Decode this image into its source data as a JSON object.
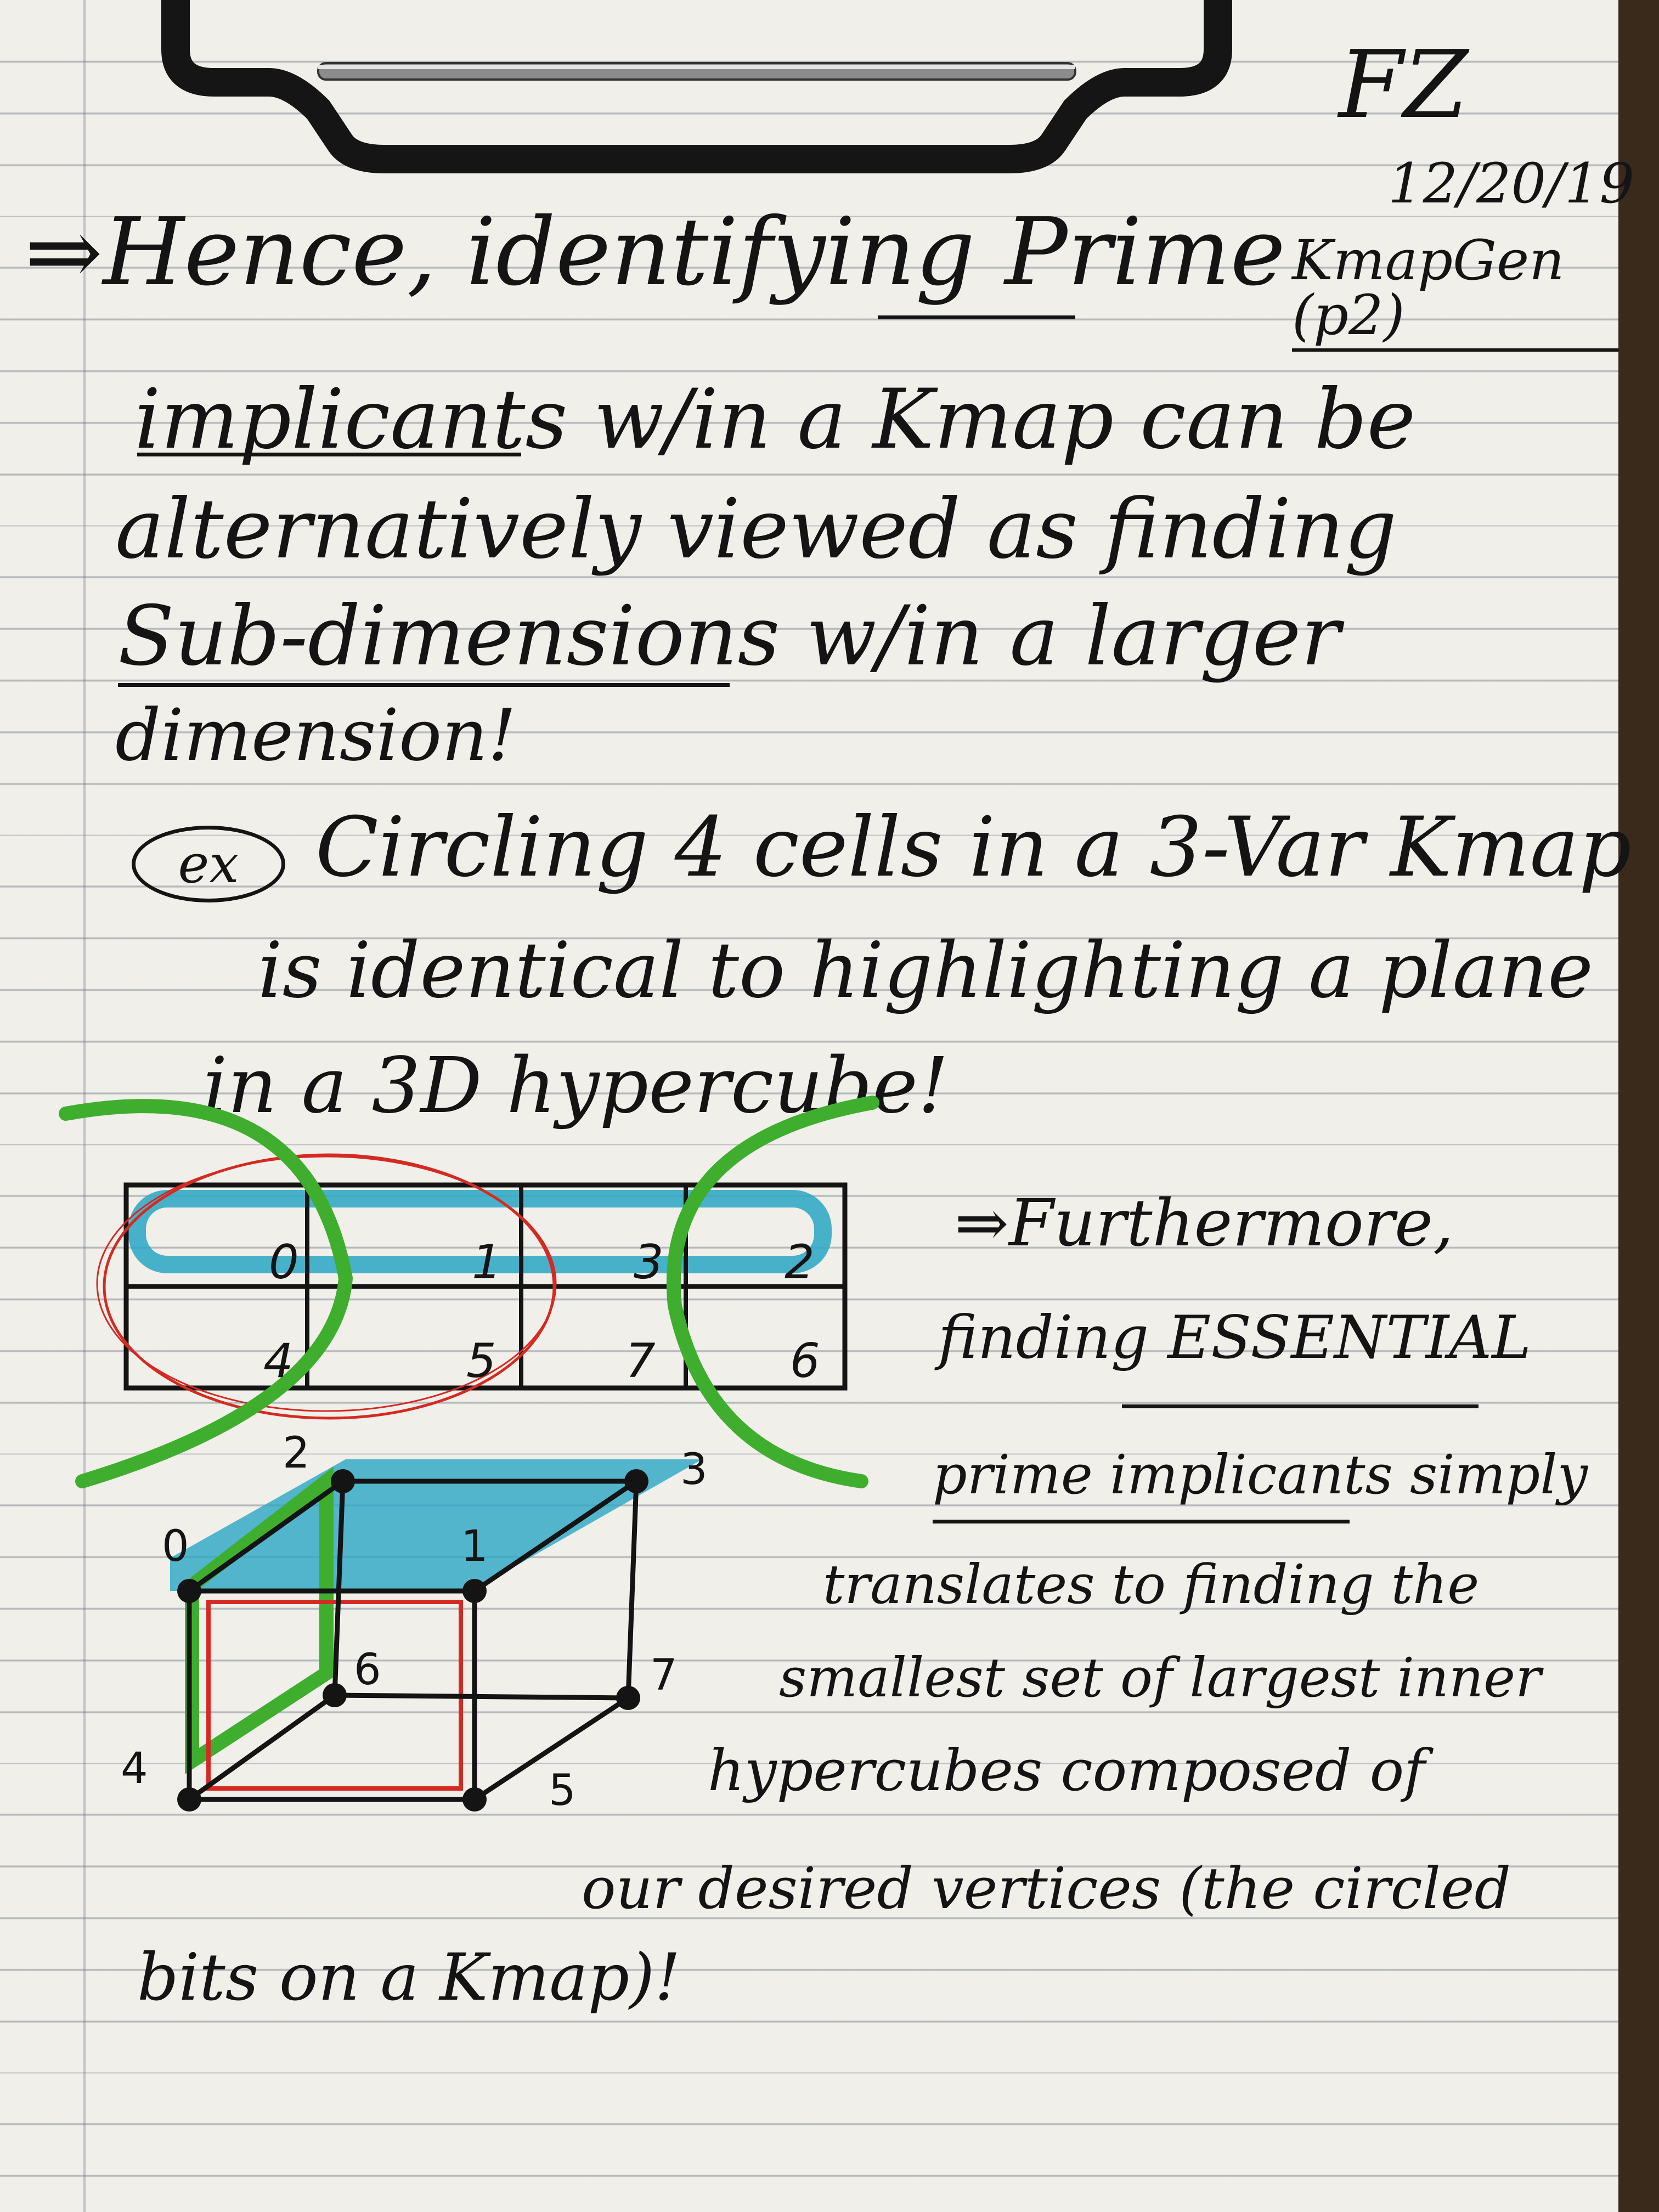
{
  "header": {
    "signature": "FZ",
    "date": "12/20/19",
    "topic": "KmapGen (p2)"
  },
  "notes": [
    "⇒Hence, identifying Prime",
    "implicants w/in a Kmap can be",
    "alternatively viewed as finding",
    "Sub-dimensions w/in a larger",
    "dimension!"
  ],
  "example": {
    "tag": "ex",
    "lines": [
      "Circling 4 cells in a 3-Var Kmap",
      "is identical to highlighting a plane",
      "in a 3D hypercube!"
    ]
  },
  "kmap": {
    "rows": [
      [
        "0",
        "1",
        "3",
        "2"
      ],
      [
        "4",
        "5",
        "7",
        "6"
      ]
    ]
  },
  "cube": {
    "vertices": [
      "0",
      "1",
      "2",
      "3",
      "4",
      "5",
      "6",
      "7"
    ]
  },
  "furthermore": [
    "⇒Furthermore,",
    "finding ESSENTIAL",
    "prime implicants simply",
    "translates to finding the",
    "smallest set of largest inner",
    "hypercubes composed of",
    "our desired vertices (the circled",
    "bits on a Kmap)!"
  ],
  "colors": {
    "ink": "#141414",
    "blue": "#2aa6c4",
    "green": "#3fae2e",
    "red": "#d42a22"
  }
}
